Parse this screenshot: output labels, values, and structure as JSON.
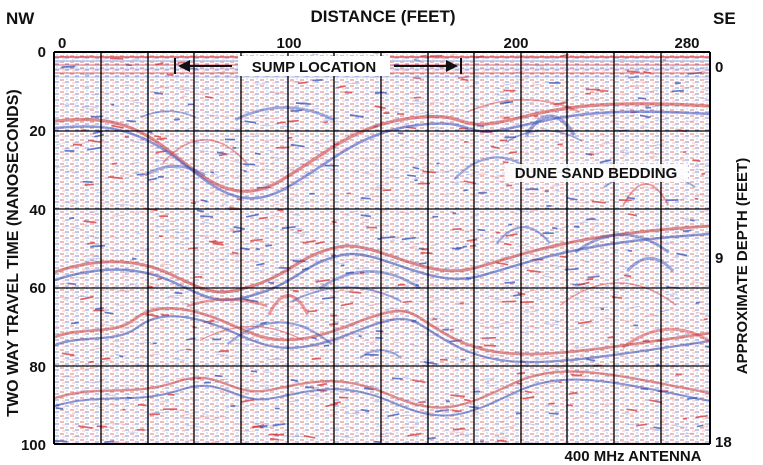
{
  "figure": {
    "top_left_label": "NW",
    "top_right_label": "SE",
    "top_axis_title": "DISTANCE (FEET)",
    "left_axis_title": "TWO WAY TRAVEL TIME (NANOSECONDS)",
    "right_axis_title": "APPROXIMATE DEPTH (FEET)",
    "top_ticks": [
      "0",
      "100",
      "200",
      "280"
    ],
    "left_ticks": [
      "0",
      "20",
      "40",
      "60",
      "80",
      "100"
    ],
    "right_ticks": [
      "0",
      "9",
      "18"
    ],
    "annotations": {
      "sump_location": "SUMP LOCATION",
      "dune_sand_bedding": "DUNE SAND BEDDING",
      "antenna": "400 MHz ANTENNA"
    },
    "colors": {
      "positive_reflection": "#d42a2a",
      "negative_reflection": "#2748b6",
      "background": "#ffffff",
      "grid": "#000000"
    }
  }
}
